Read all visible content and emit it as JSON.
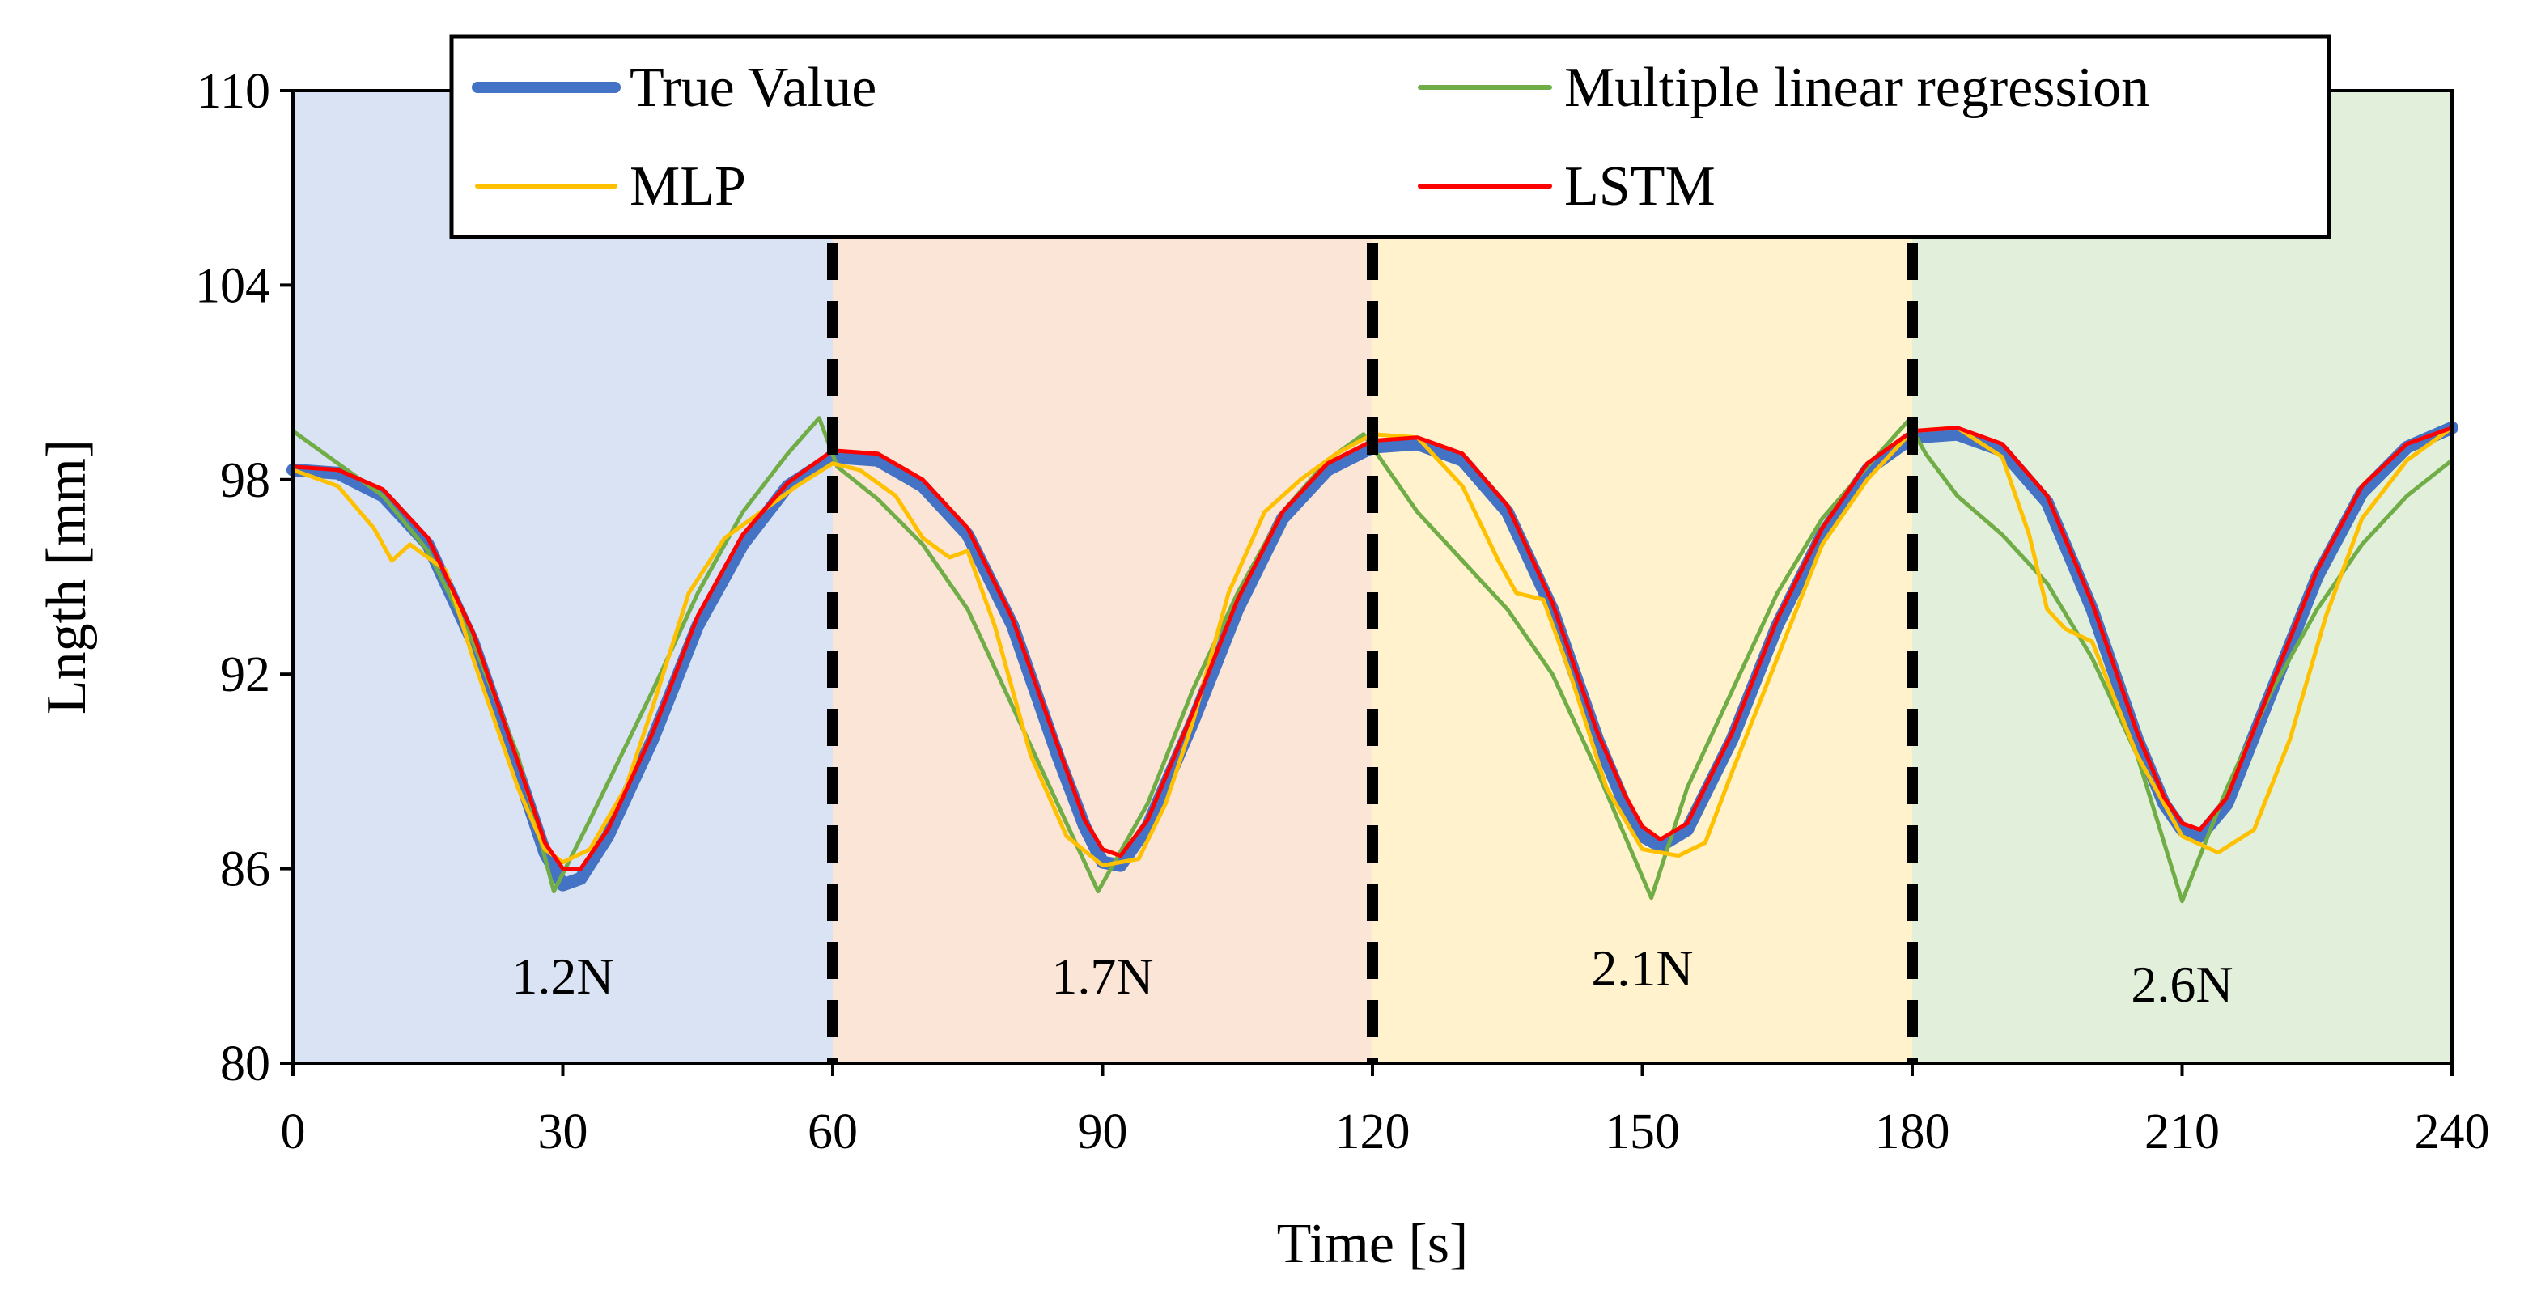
{
  "chart_data": {
    "type": "line",
    "title": "",
    "xlabel": "Time [s]",
    "ylabel": "Lngth [mm]",
    "xlim": [
      0,
      240
    ],
    "ylim": [
      80,
      110
    ],
    "xticks": [
      "0",
      "30",
      "60",
      "90",
      "120",
      "150",
      "180",
      "210",
      "240"
    ],
    "yticks": [
      "80",
      "86",
      "92",
      "98",
      "104",
      "110"
    ],
    "grid": false,
    "legend_position": "top",
    "bands": [
      {
        "label": "1.2N",
        "x": [
          0,
          60
        ],
        "color": "#dae3f3"
      },
      {
        "label": "1.7N",
        "x": [
          60,
          120
        ],
        "color": "#fbe5d6"
      },
      {
        "label": "2.1N",
        "x": [
          120,
          180
        ],
        "color": "#fff2cc"
      },
      {
        "label": "2.6N",
        "x": [
          180,
          240
        ],
        "color": "#e2efda"
      }
    ],
    "dividers": [
      60,
      120,
      180
    ],
    "series": [
      {
        "name": "True Value",
        "color": "#4472c4",
        "x": [
          0,
          5,
          10,
          15,
          20,
          25,
          28,
          30,
          32,
          35,
          40,
          45,
          50,
          55,
          60,
          65,
          70,
          75,
          80,
          85,
          88,
          90,
          92,
          95,
          100,
          105,
          110,
          115,
          120,
          125,
          130,
          135,
          140,
          145,
          148,
          150,
          152,
          155,
          160,
          165,
          170,
          175,
          180,
          185,
          190,
          195,
          200,
          205,
          208,
          210,
          212,
          215,
          220,
          225,
          230,
          235,
          240
        ],
        "y": [
          98.3,
          98.2,
          97.5,
          96.0,
          93.0,
          89.0,
          86.5,
          85.5,
          85.7,
          87.0,
          90.0,
          93.5,
          96.0,
          97.8,
          98.7,
          98.6,
          97.8,
          96.3,
          93.5,
          89.5,
          87.3,
          86.2,
          86.1,
          87.3,
          90.5,
          94.0,
          96.8,
          98.3,
          99.0,
          99.1,
          98.6,
          97.0,
          94.0,
          90.0,
          88.0,
          87.0,
          86.7,
          87.2,
          90.0,
          93.5,
          96.3,
          98.3,
          99.3,
          99.4,
          98.9,
          97.3,
          94.0,
          90.0,
          88.0,
          87.2,
          87.0,
          88.0,
          91.5,
          95.0,
          97.6,
          99.0,
          99.6
        ]
      },
      {
        "name": "Multiple linear regression",
        "color": "#70ad47",
        "x": [
          0,
          5,
          10,
          15,
          20,
          25,
          29,
          33,
          40,
          45,
          50,
          55,
          58.5,
          60.5,
          65,
          70,
          75,
          80,
          85,
          89.5,
          95,
          100,
          105,
          110,
          115,
          119,
          121,
          125,
          130,
          135,
          140,
          145,
          151,
          155,
          160,
          165,
          170,
          175,
          179.5,
          181.5,
          185,
          190,
          195,
          200,
          205,
          210,
          215,
          220,
          225,
          230,
          235,
          240
        ],
        "y": [
          99.5,
          98.5,
          97.5,
          95.8,
          93.0,
          89.5,
          85.3,
          87.5,
          91.5,
          94.5,
          97.0,
          98.8,
          99.9,
          98.4,
          97.4,
          96.0,
          94.0,
          91.0,
          88.0,
          85.3,
          88.0,
          91.5,
          94.5,
          97.0,
          98.6,
          99.4,
          98.6,
          97.0,
          95.5,
          94.0,
          92.0,
          89.0,
          85.1,
          88.5,
          91.5,
          94.5,
          96.8,
          98.4,
          99.8,
          98.8,
          97.5,
          96.3,
          94.8,
          92.5,
          89.5,
          85.0,
          88.5,
          91.5,
          94.0,
          96.0,
          97.5,
          98.6
        ]
      },
      {
        "name": "MLP",
        "color": "#ffc000",
        "x": [
          0,
          5,
          9,
          11,
          13,
          17,
          20,
          25,
          28,
          30,
          33,
          37,
          40,
          44,
          48,
          52,
          56,
          60,
          63,
          67,
          70,
          73,
          75,
          78,
          82,
          86,
          90,
          94,
          97,
          100,
          104,
          108,
          112,
          116,
          120,
          125,
          130,
          134,
          136,
          139,
          142,
          146,
          150,
          154,
          157,
          160,
          165,
          170,
          175,
          180,
          185,
          190,
          193,
          195,
          197,
          200,
          205,
          210,
          214,
          218,
          222,
          226,
          230,
          235,
          240
        ],
        "y": [
          98.3,
          97.8,
          96.5,
          95.5,
          96.0,
          95.2,
          92.5,
          88.5,
          86.6,
          86.2,
          86.6,
          88.5,
          91.0,
          94.5,
          96.2,
          97.0,
          97.8,
          98.5,
          98.3,
          97.5,
          96.2,
          95.6,
          95.8,
          93.5,
          89.5,
          87.0,
          86.1,
          86.3,
          88.0,
          90.5,
          94.5,
          97.0,
          98.0,
          98.8,
          99.4,
          99.3,
          97.8,
          95.5,
          94.5,
          94.3,
          92.0,
          88.5,
          86.6,
          86.4,
          86.8,
          89.0,
          92.5,
          96.0,
          98.0,
          99.5,
          99.6,
          98.7,
          96.3,
          94.0,
          93.4,
          93.0,
          89.5,
          87.0,
          86.5,
          87.2,
          90.0,
          93.8,
          96.8,
          98.6,
          99.6
        ]
      },
      {
        "name": "LSTM",
        "color": "#ff0000",
        "x": [
          0,
          5,
          10,
          15,
          20,
          25,
          28,
          30,
          32,
          35,
          40,
          45,
          50,
          55,
          60,
          65,
          70,
          75,
          80,
          85,
          88,
          90,
          92,
          95,
          100,
          105,
          110,
          115,
          120,
          125,
          130,
          135,
          140,
          145,
          148,
          150,
          152,
          155,
          160,
          165,
          170,
          175,
          180,
          185,
          190,
          195,
          200,
          205,
          208,
          210,
          212,
          215,
          220,
          225,
          230,
          235,
          240
        ],
        "y": [
          98.4,
          98.3,
          97.7,
          96.2,
          93.3,
          89.3,
          86.8,
          86.0,
          86.0,
          87.2,
          90.2,
          93.8,
          96.3,
          97.9,
          98.9,
          98.8,
          98.0,
          96.5,
          93.7,
          89.8,
          87.5,
          86.6,
          86.4,
          87.5,
          90.8,
          94.3,
          97.0,
          98.5,
          99.2,
          99.3,
          98.8,
          97.2,
          94.2,
          90.2,
          88.3,
          87.3,
          86.9,
          87.4,
          90.2,
          93.7,
          96.5,
          98.5,
          99.5,
          99.6,
          99.1,
          97.5,
          94.2,
          90.2,
          88.2,
          87.4,
          87.2,
          88.2,
          91.7,
          95.2,
          97.8,
          99.1,
          99.6
        ]
      }
    ]
  }
}
